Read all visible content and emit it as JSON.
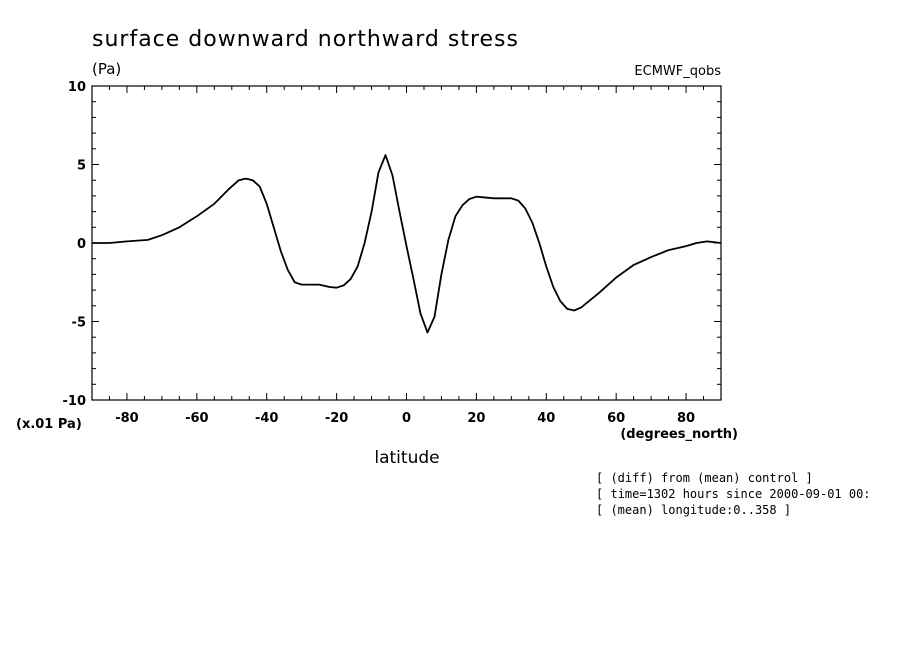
{
  "chart_data": {
    "type": "line",
    "title": "surface downward northward stress",
    "ylabel": "(Pa)",
    "source_label": "ECMWF_qobs",
    "yscale_label": "(x.01 Pa)",
    "xunit_label": "(degrees_north)",
    "xlabel": "latitude",
    "xlim": [
      -90,
      90
    ],
    "ylim": [
      -10,
      10
    ],
    "x_ticks": [
      "-80",
      "-60",
      "-40",
      "-20",
      "0",
      "20",
      "40",
      "60",
      "80"
    ],
    "y_ticks": [
      "10",
      "5",
      "0",
      "-5",
      "-10"
    ],
    "grid": false,
    "series": [
      {
        "x": [
          -90,
          -85,
          -80,
          -74,
          -70,
          -65,
          -60,
          -55,
          -51,
          -48,
          -46,
          -44,
          -42,
          -40,
          -38,
          -36,
          -34,
          -32,
          -30,
          -28,
          -25,
          -22,
          -20,
          -18,
          -16,
          -14,
          -12,
          -10,
          -8,
          -6,
          -4,
          -2,
          0,
          2,
          4,
          6,
          8,
          10,
          12,
          14,
          16,
          18,
          20,
          25,
          30,
          32,
          34,
          36,
          38,
          40,
          42,
          44,
          46,
          48,
          50,
          55,
          60,
          65,
          70,
          75,
          78,
          80,
          83,
          86,
          88,
          90
        ],
        "y": [
          0,
          0,
          0.1,
          0.2,
          0.5,
          1.0,
          1.7,
          2.5,
          3.4,
          4.0,
          4.1,
          4.0,
          3.6,
          2.5,
          1.0,
          -0.5,
          -1.7,
          -2.5,
          -2.65,
          -2.65,
          -2.65,
          -2.8,
          -2.85,
          -2.7,
          -2.3,
          -1.5,
          0,
          2.0,
          4.5,
          5.6,
          4.3,
          2.0,
          -0.2,
          -2.3,
          -4.5,
          -5.7,
          -4.7,
          -2.0,
          0.2,
          1.7,
          2.4,
          2.8,
          2.95,
          2.85,
          2.85,
          2.7,
          2.2,
          1.3,
          0,
          -1.5,
          -2.8,
          -3.7,
          -4.2,
          -4.3,
          -4.1,
          -3.2,
          -2.2,
          -1.4,
          -0.9,
          -0.45,
          -0.3,
          -0.2,
          0,
          0.1,
          0.05,
          0
        ]
      }
    ]
  },
  "notes": [
    "[ (diff) from (mean) control ]",
    "[ time=1302 hours since 2000-09-01 00:",
    "[ (mean) longitude:0..358 ]"
  ]
}
